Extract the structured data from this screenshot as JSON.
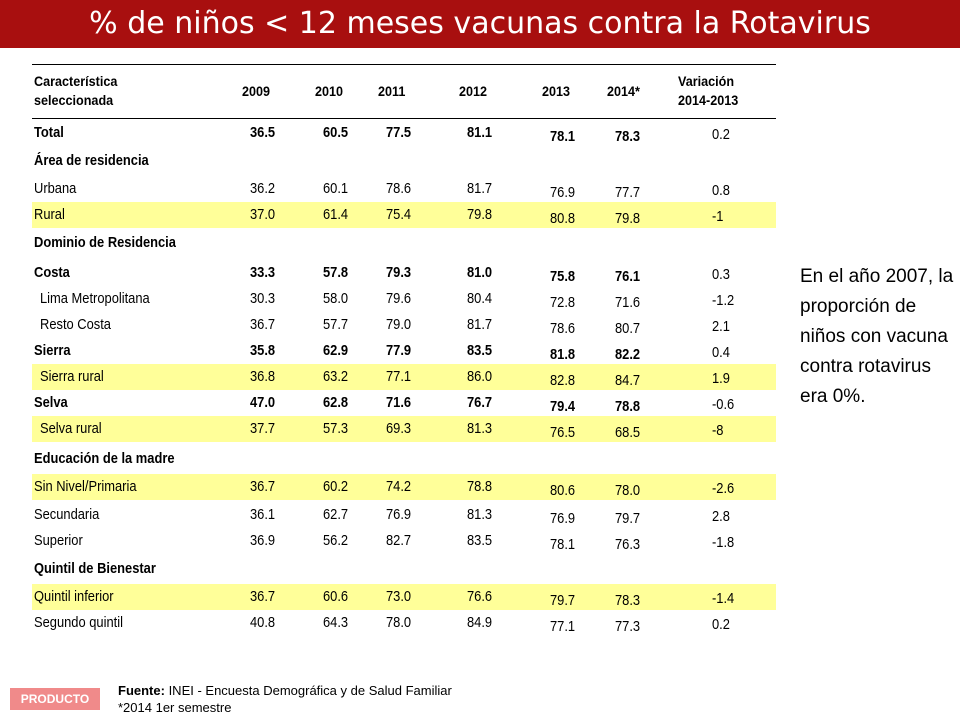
{
  "title": "% de niños < 12 meses vacunas contra la Rotavirus",
  "header": {
    "characteristic": [
      "Característica",
      "seleccionada"
    ],
    "years": [
      "2009",
      "2010",
      "2011",
      "2012",
      "2013",
      "2014*"
    ],
    "variation": [
      "Variación",
      "2014-2013"
    ]
  },
  "rows": [
    {
      "label": "Total",
      "bold": true,
      "values": [
        "36.5",
        "60.5",
        "77.5",
        "81.1",
        "78.1",
        "78.3"
      ],
      "var": "0.2",
      "highlight": false
    },
    {
      "label": "Área de residencia",
      "section": true
    },
    {
      "label": "Urbana",
      "values": [
        "36.2",
        "60.1",
        "78.6",
        "81.7",
        "76.9",
        "77.7"
      ],
      "var": "0.8",
      "highlight": false
    },
    {
      "label": "Rural",
      "values": [
        "37.0",
        "61.4",
        "75.4",
        "79.8",
        "80.8",
        "79.8"
      ],
      "var": "-1",
      "highlight": true
    },
    {
      "label": "Dominio de Residencia",
      "section": true
    },
    {
      "label": "Costa",
      "bold": true,
      "values": [
        "33.3",
        "57.8",
        "79.3",
        "81.0",
        "75.8",
        "76.1"
      ],
      "var": "0.3",
      "highlight": false
    },
    {
      "label": "Lima Metropolitana",
      "indent": true,
      "values": [
        "30.3",
        "58.0",
        "79.6",
        "80.4",
        "72.8",
        "71.6"
      ],
      "var": "-1.2",
      "highlight": false
    },
    {
      "label": "Resto Costa",
      "indent": true,
      "values": [
        "36.7",
        "57.7",
        "79.0",
        "81.7",
        "78.6",
        "80.7"
      ],
      "var": "2.1",
      "highlight": false
    },
    {
      "label": "Sierra",
      "bold": true,
      "values": [
        "35.8",
        "62.9",
        "77.9",
        "83.5",
        "81.8",
        "82.2"
      ],
      "var": "0.4",
      "highlight": false
    },
    {
      "label": "Sierra rural",
      "indent": true,
      "values": [
        "36.8",
        "63.2",
        "77.1",
        "86.0",
        "82.8",
        "84.7"
      ],
      "var": "1.9",
      "highlight": true
    },
    {
      "label": "Selva",
      "bold": true,
      "values": [
        "47.0",
        "62.8",
        "71.6",
        "76.7",
        "79.4",
        "78.8"
      ],
      "var": "-0.6",
      "highlight": false
    },
    {
      "label": "Selva rural",
      "indent": true,
      "values": [
        "37.7",
        "57.3",
        "69.3",
        "81.3",
        "76.5",
        "68.5"
      ],
      "var": "-8",
      "highlight": true
    },
    {
      "label": "Educación de la madre",
      "section": true
    },
    {
      "label": "Sin Nivel/Primaria",
      "values": [
        "36.7",
        "60.2",
        "74.2",
        "78.8",
        "80.6",
        "78.0"
      ],
      "var": "-2.6",
      "highlight": true
    },
    {
      "label": "Secundaria",
      "values": [
        "36.1",
        "62.7",
        "76.9",
        "81.3",
        "76.9",
        "79.7"
      ],
      "var": "2.8",
      "highlight": false
    },
    {
      "label": "Superior",
      "values": [
        "36.9",
        "56.2",
        "82.7",
        "83.5",
        "78.1",
        "76.3"
      ],
      "var": "-1.8",
      "highlight": false
    },
    {
      "label": "Quintil de Bienestar",
      "section": true
    },
    {
      "label": "Quintil inferior",
      "values": [
        "36.7",
        "60.6",
        "73.0",
        "76.6",
        "79.7",
        "78.3"
      ],
      "var": "-1.4",
      "highlight": true
    },
    {
      "label": "Segundo quintil",
      "values": [
        "40.8",
        "64.3",
        "78.0",
        "84.9",
        "77.1",
        "77.3"
      ],
      "var": "0.2",
      "highlight": false
    }
  ],
  "note": "En el año 2007, la proporción de niños con vacuna contra rotavirus era 0%.",
  "source": {
    "label": "Fuente:",
    "text": " INEI - Encuesta Demográfica y de Salud Familiar",
    "footnote": "*2014 1er semestre"
  },
  "badge": "PRODUCTO",
  "colors": {
    "title_bg": "#a80f0f",
    "highlight": "#ffff99",
    "badge": "#f08a8a"
  }
}
